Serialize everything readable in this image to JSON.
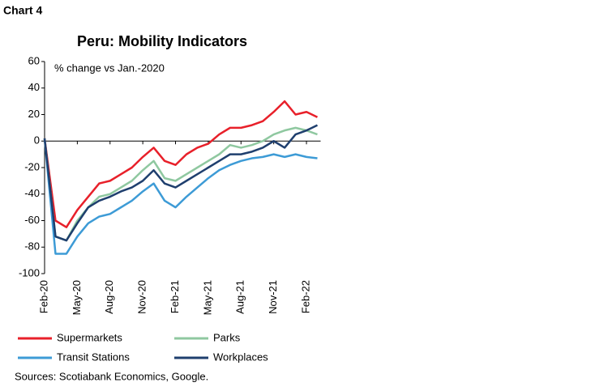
{
  "label": "Chart 4",
  "source": "Sources: Scotiabank Economics, Google.",
  "chart_data": {
    "type": "line",
    "title": "Peru: Mobility Indicators",
    "subtitle": "% change vs Jan.-2020",
    "categories": [
      "Feb-20",
      null,
      null,
      "May-20",
      null,
      null,
      "Aug-20",
      null,
      null,
      "Nov-20",
      null,
      null,
      "Feb-21",
      null,
      null,
      "May-21",
      null,
      null,
      "Aug-21",
      null,
      null,
      "Nov-21",
      null,
      null,
      "Feb-22",
      null
    ],
    "series": [
      {
        "name": "Supermarkets",
        "color": "#e8202a",
        "values": [
          2,
          -60,
          -65,
          -52,
          -42,
          -32,
          -30,
          -25,
          -20,
          -12,
          -5,
          -15,
          -18,
          -10,
          -5,
          -2,
          5,
          10,
          10,
          12,
          15,
          22,
          30,
          20,
          22,
          18
        ]
      },
      {
        "name": "Parks",
        "color": "#8fc8a0",
        "values": [
          2,
          -72,
          -75,
          -60,
          -50,
          -42,
          -40,
          -35,
          -30,
          -22,
          -15,
          -28,
          -30,
          -25,
          -20,
          -15,
          -10,
          -3,
          -5,
          -3,
          0,
          5,
          8,
          10,
          8,
          5
        ]
      },
      {
        "name": "Transit Stations",
        "color": "#3d9bd6",
        "values": [
          2,
          -85,
          -85,
          -72,
          -62,
          -57,
          -55,
          -50,
          -45,
          -38,
          -32,
          -45,
          -50,
          -42,
          -35,
          -28,
          -22,
          -18,
          -15,
          -13,
          -12,
          -10,
          -12,
          -10,
          -12,
          -13
        ]
      },
      {
        "name": "Workplaces",
        "color": "#1f3f6e",
        "values": [
          2,
          -72,
          -75,
          -62,
          -50,
          -45,
          -42,
          -38,
          -35,
          -30,
          -22,
          -32,
          -35,
          -30,
          -25,
          -20,
          -15,
          -10,
          -10,
          -8,
          -5,
          0,
          -5,
          5,
          8,
          12
        ]
      }
    ],
    "ylim": [
      -100,
      60
    ],
    "yticks": [
      -100,
      -80,
      -60,
      -40,
      -20,
      0,
      20,
      40,
      60
    ]
  }
}
